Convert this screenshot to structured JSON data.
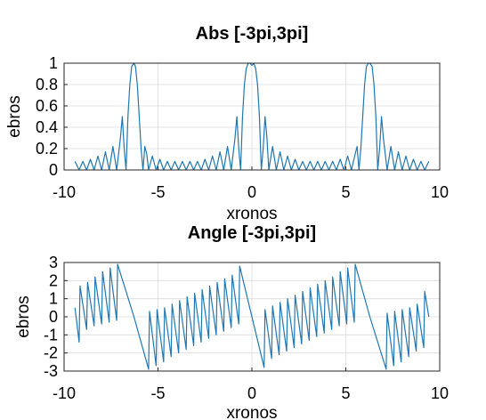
{
  "chart_data": [
    {
      "type": "line",
      "title": "Abs [-3pi,3pi]",
      "xlabel": "xronos",
      "ylabel": "ebros",
      "xlim": [
        -10,
        10
      ],
      "ylim": [
        0,
        1
      ],
      "xticks": [
        -10,
        -5,
        0,
        5,
        10
      ],
      "yticks": [
        0,
        0.2,
        0.4,
        0.6,
        0.8,
        1
      ],
      "xtick_labels": [
        "-10",
        "-5",
        "0",
        "5",
        "10"
      ],
      "ytick_labels": [
        "0",
        "0.2",
        "0.4",
        "0.6",
        "0.8",
        "1"
      ],
      "grid": true,
      "color": "#1f77b4",
      "x_range": [
        -9.42,
        9.42
      ],
      "note": "",
      "series": [
        {
          "x": [
            -9.42,
            -9.2,
            -9.0,
            -8.8,
            -8.6,
            -8.4,
            -8.2,
            -8.0,
            -7.8,
            -7.6,
            -7.4,
            -7.2,
            -7.0,
            -6.9,
            -6.8,
            -6.7,
            -6.6,
            -6.5,
            -6.4,
            -6.28,
            -6.2,
            -6.1,
            -6.0,
            -5.9,
            -5.8,
            -5.7,
            -5.6,
            -5.5,
            -5.3,
            -5.1,
            -4.9,
            -4.7,
            -4.5,
            -4.3,
            -4.1,
            -3.9,
            -3.7,
            -3.5,
            -3.3,
            -3.1,
            -2.9,
            -2.7,
            -2.5,
            -2.3,
            -2.1,
            -1.9,
            -1.7,
            -1.5,
            -1.3,
            -1.1,
            -0.9,
            -0.8,
            -0.7,
            -0.6,
            -0.5,
            -0.4,
            -0.3,
            -0.2,
            -0.1,
            0.0,
            0.1,
            0.2,
            0.3,
            0.4,
            0.5,
            0.6,
            0.7,
            0.8,
            0.9,
            1.1,
            1.3,
            1.5,
            1.7,
            1.9,
            2.1,
            2.3,
            2.5,
            2.7,
            2.9,
            3.1,
            3.3,
            3.5,
            3.7,
            3.9,
            4.1,
            4.3,
            4.5,
            4.7,
            4.9,
            5.1,
            5.3,
            5.5,
            5.6,
            5.7,
            5.8,
            5.9,
            6.0,
            6.1,
            6.2,
            6.28,
            6.4,
            6.5,
            6.6,
            6.7,
            6.8,
            6.9,
            7.0,
            7.2,
            7.4,
            7.6,
            7.8,
            8.0,
            8.2,
            8.4,
            8.6,
            8.8,
            9.0,
            9.2,
            9.42
          ],
          "y": [
            0.08,
            0.0,
            0.08,
            0.0,
            0.1,
            0.0,
            0.13,
            0.0,
            0.17,
            0.0,
            0.22,
            0.0,
            0.3,
            0.5,
            0.2,
            0.0,
            0.5,
            0.8,
            0.97,
            1.0,
            0.97,
            0.8,
            0.5,
            0.2,
            0.0,
            0.22,
            0.15,
            0.0,
            0.13,
            0.0,
            0.1,
            0.0,
            0.08,
            0.0,
            0.08,
            0.0,
            0.08,
            0.0,
            0.08,
            0.0,
            0.08,
            0.0,
            0.1,
            0.0,
            0.13,
            0.0,
            0.17,
            0.0,
            0.22,
            0.0,
            0.3,
            0.5,
            0.2,
            0.0,
            0.5,
            0.8,
            0.95,
            1.0,
            1.0,
            0.98,
            1.0,
            0.95,
            0.8,
            0.5,
            0.0,
            0.2,
            0.5,
            0.3,
            0.0,
            0.22,
            0.0,
            0.17,
            0.0,
            0.13,
            0.0,
            0.1,
            0.0,
            0.08,
            0.0,
            0.08,
            0.0,
            0.08,
            0.0,
            0.08,
            0.0,
            0.08,
            0.0,
            0.1,
            0.0,
            0.13,
            0.0,
            0.15,
            0.22,
            0.0,
            0.2,
            0.5,
            0.8,
            0.97,
            1.0,
            1.0,
            0.97,
            0.8,
            0.5,
            0.0,
            0.2,
            0.5,
            0.3,
            0.0,
            0.22,
            0.0,
            0.17,
            0.0,
            0.13,
            0.0,
            0.1,
            0.0,
            0.08,
            0.0,
            0.08
          ]
        }
      ]
    },
    {
      "type": "line",
      "title": "Angle [-3pi,3pi]",
      "xlabel": "xronos",
      "ylabel": "ebros",
      "xlim": [
        -10,
        10
      ],
      "ylim": [
        -3,
        3
      ],
      "xticks": [
        -10,
        -5,
        0,
        5,
        10
      ],
      "yticks": [
        -3,
        -2,
        -1,
        0,
        1,
        2,
        3
      ],
      "xtick_labels": [
        "-10",
        "-5",
        "0",
        "5",
        "10"
      ],
      "ytick_labels": [
        "-3",
        "-2",
        "-1",
        "0",
        "1",
        "2",
        "3"
      ],
      "grid": true,
      "color": "#1f77b4",
      "series": [
        {
          "x": [
            -9.42,
            -9.2,
            -9.15,
            -8.8,
            -8.75,
            -8.4,
            -8.35,
            -8.0,
            -7.95,
            -7.6,
            -7.55,
            -7.2,
            -7.15,
            -6.28,
            -5.5,
            -5.45,
            -5.1,
            -5.05,
            -4.7,
            -4.65,
            -4.3,
            -4.25,
            -3.9,
            -3.85,
            -3.5,
            -3.45,
            -3.1,
            -3.05,
            -2.7,
            -2.65,
            -2.3,
            -2.25,
            -1.9,
            -1.85,
            -1.5,
            -1.45,
            -1.1,
            -1.05,
            -0.7,
            -0.65,
            0.0,
            0.65,
            0.7,
            1.05,
            1.1,
            1.45,
            1.5,
            1.85,
            1.9,
            2.25,
            2.3,
            2.65,
            2.7,
            3.05,
            3.1,
            3.45,
            3.5,
            3.85,
            3.9,
            4.25,
            4.3,
            4.65,
            4.7,
            5.05,
            5.1,
            5.45,
            5.5,
            6.28,
            7.15,
            7.2,
            7.55,
            7.6,
            7.95,
            8.0,
            8.35,
            8.4,
            8.75,
            8.8,
            9.15,
            9.2,
            9.42
          ],
          "y": [
            0.5,
            -1.4,
            1.7,
            -0.7,
            1.9,
            -0.5,
            2.2,
            -0.4,
            2.5,
            -0.3,
            2.7,
            -0.2,
            2.9,
            0.0,
            -2.9,
            0.3,
            -2.7,
            0.4,
            -2.5,
            0.5,
            -2.2,
            0.7,
            -2.0,
            0.9,
            -1.8,
            1.1,
            -1.6,
            1.3,
            -1.4,
            1.5,
            -1.2,
            1.7,
            -1.0,
            1.9,
            -0.8,
            2.1,
            -0.6,
            2.3,
            -0.4,
            2.8,
            0.0,
            -2.8,
            0.4,
            -2.3,
            0.6,
            -2.1,
            0.8,
            -1.9,
            1.0,
            -1.7,
            1.2,
            -1.5,
            1.4,
            -1.3,
            1.6,
            -1.1,
            1.8,
            -0.9,
            2.0,
            -0.7,
            2.2,
            -0.5,
            2.5,
            -0.4,
            2.7,
            -0.3,
            2.9,
            0.0,
            -2.9,
            0.2,
            -2.7,
            0.3,
            -2.5,
            0.4,
            -2.2,
            0.5,
            -1.9,
            0.7,
            -1.7,
            1.4,
            0.0
          ]
        }
      ]
    }
  ]
}
